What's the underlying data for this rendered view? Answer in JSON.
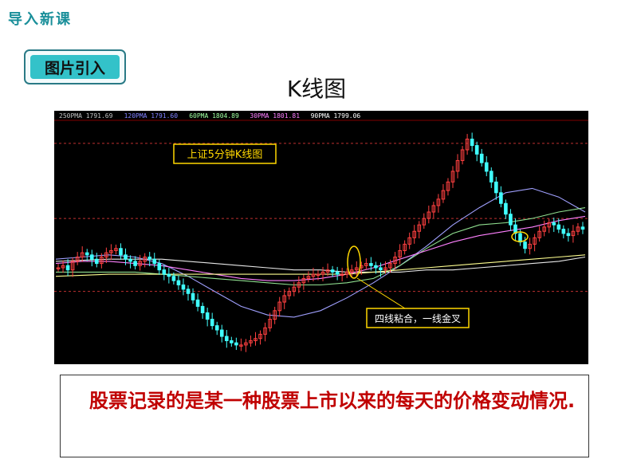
{
  "header": {
    "section": "导入新课",
    "tag": "图片引入",
    "title": "K线图"
  },
  "chart_data": {
    "type": "line",
    "ma_readouts": [
      {
        "label": "250PMA",
        "value": "1791.69",
        "color": "#c0c0c0"
      },
      {
        "label": "120PMA",
        "value": "1791.60",
        "color": "#8080ff"
      },
      {
        "label": "60PMA",
        "value": "1804.89",
        "color": "#a0ffa0"
      },
      {
        "label": "30PMA",
        "value": "1801.81",
        "color": "#ff80ff"
      },
      {
        "label": "90PMA",
        "value": "1799.06",
        "color": "#ffffff"
      }
    ],
    "chart_label": "上证5分钟K线图",
    "annotation": "四线粘合，一线金叉",
    "candles": [
      1792,
      1793,
      1791,
      1795,
      1797,
      1799,
      1798,
      1796,
      1794,
      1797,
      1799,
      1800,
      1801,
      1798,
      1796,
      1795,
      1793,
      1795,
      1797,
      1796,
      1794,
      1791,
      1789,
      1788,
      1786,
      1784,
      1782,
      1780,
      1777,
      1774,
      1771,
      1768,
      1765,
      1763,
      1760,
      1758,
      1757,
      1756,
      1756,
      1757,
      1758,
      1759,
      1761,
      1764,
      1768,
      1772,
      1776,
      1779,
      1781,
      1783,
      1785,
      1787,
      1788,
      1789,
      1789,
      1790,
      1791,
      1790,
      1789,
      1789,
      1790,
      1791,
      1792,
      1793,
      1794,
      1793,
      1792,
      1791,
      1792,
      1794,
      1797,
      1800,
      1803,
      1806,
      1809,
      1812,
      1815,
      1818,
      1821,
      1824,
      1828,
      1832,
      1837,
      1842,
      1847,
      1852,
      1849,
      1845,
      1841,
      1837,
      1832,
      1827,
      1822,
      1817,
      1812,
      1808,
      1804,
      1801,
      1803,
      1806,
      1809,
      1811,
      1813,
      1812,
      1810,
      1808,
      1807,
      1809,
      1811,
      1810
    ],
    "ma_lines": [
      {
        "name": "250PMA",
        "color": "#e8e8e8",
        "values": [
          1795,
          1795.5,
          1796,
          1796,
          1796,
          1795,
          1794,
          1793,
          1792,
          1791,
          1791,
          1790,
          1790,
          1790,
          1791,
          1791,
          1792,
          1793,
          1794,
          1795,
          1797
        ]
      },
      {
        "name": "120PMA",
        "color": "#a0a0ff",
        "values": [
          1796,
          1797,
          1798,
          1797,
          1794,
          1788,
          1781,
          1774,
          1770,
          1769,
          1772,
          1778,
          1785,
          1793,
          1802,
          1812,
          1820,
          1827,
          1829,
          1825,
          1818
        ]
      },
      {
        "name": "60PMA",
        "color": "#90e090",
        "values": [
          1790,
          1790,
          1790,
          1790,
          1789,
          1788,
          1787,
          1786,
          1785,
          1784,
          1784,
          1785,
          1787,
          1793,
          1801,
          1808,
          1812,
          1813,
          1815,
          1818,
          1820
        ]
      },
      {
        "name": "30PMA",
        "color": "#ff80ff",
        "values": [
          1794,
          1795,
          1795,
          1794,
          1793,
          1791,
          1789,
          1787,
          1786,
          1786,
          1787,
          1789,
          1792,
          1796,
          1800,
          1804,
          1807,
          1809,
          1811,
          1814,
          1816
        ]
      },
      {
        "name": "90PMA",
        "color": "#ffff90",
        "values": [
          1788,
          1788.5,
          1789,
          1789,
          1789,
          1789,
          1789,
          1789,
          1789,
          1789,
          1789,
          1789,
          1790,
          1791,
          1792,
          1793,
          1794,
          1795,
          1796,
          1797,
          1798
        ]
      }
    ],
    "ylim": [
      1750,
      1860
    ],
    "ref_lines": [
      1850,
      1815,
      1781
    ]
  },
  "caption": "股票记录的是某一种股票上市以来的每天的价格变动情况."
}
